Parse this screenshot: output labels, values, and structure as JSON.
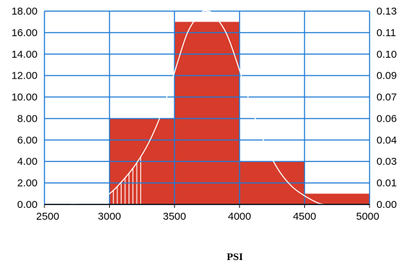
{
  "chart_data": {
    "type": "bar",
    "title": "",
    "xlabel": "PSI",
    "ylabel": "",
    "xlim": [
      2500,
      5000
    ],
    "ylim": [
      0,
      18
    ],
    "y2lim": [
      0,
      0.13
    ],
    "x_ticks": [
      "2500",
      "3000",
      "3500",
      "4000",
      "4500",
      "5000"
    ],
    "y_ticks": [
      "0.00",
      "2.00",
      "4.00",
      "6.00",
      "8.00",
      "10.00",
      "12.00",
      "14.00",
      "16.00",
      "18.00"
    ],
    "y2_ticks": [
      "0.00",
      "0.01",
      "0.03",
      "0.04",
      "0.06",
      "0.07",
      "0.09",
      "0.10",
      "0.11",
      "0.13"
    ],
    "grid": true,
    "series": [
      {
        "type": "histogram",
        "bins": [
          {
            "start": 3000,
            "end": 3500,
            "value": 8
          },
          {
            "start": 3500,
            "end": 4000,
            "value": 17
          },
          {
            "start": 4000,
            "end": 4500,
            "value": 4
          },
          {
            "start": 4500,
            "end": 5000,
            "value": 1
          }
        ]
      },
      {
        "type": "line",
        "axis": "right",
        "x": [
          2700,
          2800,
          2900,
          3000,
          3100,
          3200,
          3300,
          3400,
          3500,
          3600,
          3700,
          3750,
          3800,
          3900,
          4000,
          4100,
          4200,
          4300,
          4400,
          4500,
          4600,
          4650
        ],
        "y_left_units": [
          0.0,
          0.2,
          0.5,
          1.0,
          2.2,
          3.7,
          5.7,
          8.5,
          12.3,
          16.0,
          17.8,
          18.0,
          17.7,
          15.9,
          12.5,
          8.7,
          5.5,
          3.2,
          1.7,
          0.8,
          0.15,
          0.0
        ]
      }
    ],
    "colors": {
      "bar": "#d63b2b",
      "grid": "#1f7bd6",
      "curve": "#ffffff",
      "axis": "#000000"
    }
  }
}
